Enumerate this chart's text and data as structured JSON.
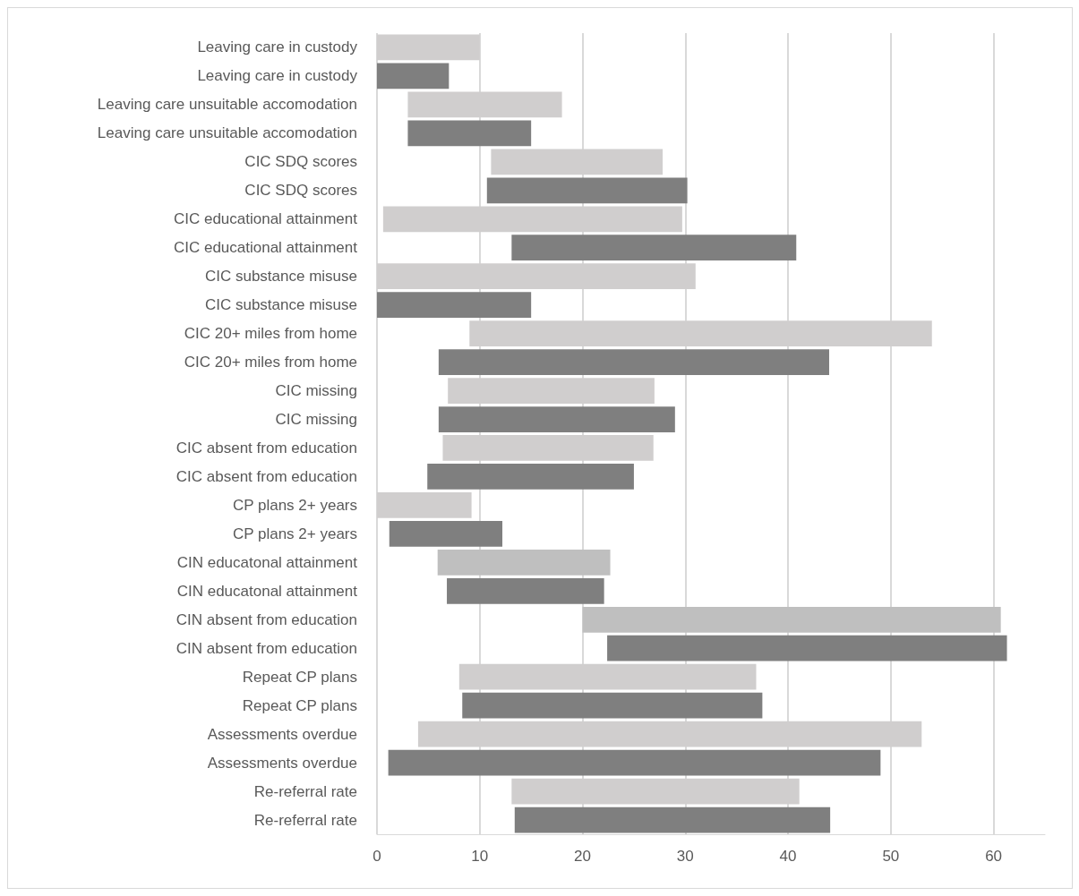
{
  "chart_data": {
    "type": "bar",
    "orientation": "horizontal",
    "categories": [
      "Leaving care in custody",
      "Leaving care in custody",
      "Leaving care unsuitable accomodation",
      "Leaving care unsuitable accomodation",
      "CIC SDQ scores",
      "CIC SDQ scores",
      "CIC educational attainment",
      "CIC educational attainment",
      "CIC substance misuse",
      "CIC substance misuse",
      "CIC 20+ miles from home",
      "CIC 20+ miles from home",
      "CIC missing",
      "CIC missing",
      "CIC absent from education",
      "CIC absent from education",
      "CP plans 2+ years",
      "CP plans 2+ years",
      "CIN educatonal attainment",
      "CIN educatonal attainment",
      "CIN absent from education",
      "CIN absent from education",
      "Repeat CP plans",
      "Repeat CP plans",
      "Assessments overdue",
      "Assessments overdue",
      "Re-referral rate",
      "Re-referral rate"
    ],
    "base": [
      0,
      0,
      3,
      3,
      11.1,
      10.7,
      0.6,
      13.1,
      0,
      0,
      9,
      6,
      6.9,
      6,
      6.4,
      4.9,
      0,
      1.2,
      5.9,
      6.8,
      20,
      22.4,
      8,
      8.3,
      4,
      1.1,
      13.1,
      13.4
    ],
    "values": [
      10,
      7,
      15,
      12,
      16.7,
      19.5,
      29.1,
      27.7,
      31,
      15,
      45,
      38,
      20.1,
      23,
      20.5,
      20.1,
      9.2,
      11,
      16.8,
      15.3,
      40.7,
      38.9,
      28.9,
      29.2,
      49,
      47.9,
      28,
      30.7
    ],
    "colors": [
      "#d0cece",
      "#7f7f7f",
      "#d0cece",
      "#7f7f7f",
      "#d0cece",
      "#7f7f7f",
      "#d0cece",
      "#7f7f7f",
      "#d0cece",
      "#7f7f7f",
      "#d0cece",
      "#7f7f7f",
      "#d0cece",
      "#7f7f7f",
      "#d0cece",
      "#7f7f7f",
      "#d0cece",
      "#7f7f7f",
      "#bfbfbf",
      "#7f7f7f",
      "#bfbfbf",
      "#7f7f7f",
      "#d0cece",
      "#7f7f7f",
      "#d0cece",
      "#7f7f7f",
      "#d0cece",
      "#7f7f7f"
    ],
    "xlim": [
      0,
      65
    ],
    "xticks": [
      0,
      10,
      20,
      30,
      40,
      50,
      60
    ],
    "grid": "x"
  }
}
